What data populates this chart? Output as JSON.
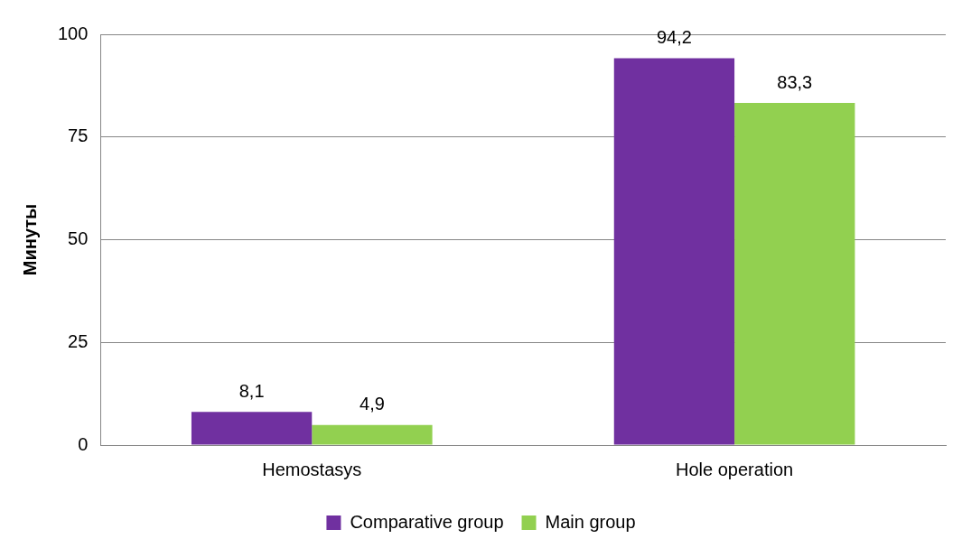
{
  "chart_data": {
    "type": "bar",
    "ylabel": "Минуты",
    "categories": [
      "Hemostasys",
      "Hole operation"
    ],
    "series": [
      {
        "name": "Comparative group",
        "color": "#7030a0",
        "values": [
          8.1,
          94.2
        ],
        "value_labels": [
          "8,1",
          "94,2"
        ]
      },
      {
        "name": "Main group",
        "color": "#92d050",
        "values": [
          4.9,
          83.3
        ],
        "value_labels": [
          "4,9",
          "83,3"
        ]
      }
    ],
    "ylim": [
      0,
      100
    ],
    "yticks": [
      0,
      25,
      50,
      75,
      100
    ],
    "grid": "y",
    "legend": "bottom"
  }
}
